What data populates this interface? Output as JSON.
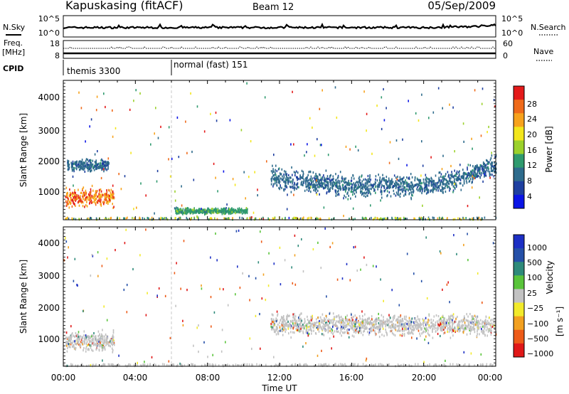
{
  "header": {
    "station": "Kapuskasing (fitACF)",
    "beam": "Beam 12",
    "date": "05/Sep/2009"
  },
  "strip1": {
    "left_label": "N.Sky",
    "right_label": "N.Search",
    "left_ticks": [
      "10^5",
      "10^0"
    ],
    "right_ticks": [
      "10^5",
      "10^0"
    ]
  },
  "strip2": {
    "left_label_1": "Freq.",
    "left_label_2": "[MHz]",
    "right_label": "Nave",
    "left_ticks": [
      "18",
      "8"
    ],
    "right_ticks": [
      "60",
      "0"
    ]
  },
  "cpid": {
    "label": "CPID",
    "segments": [
      {
        "name": "themis 3300",
        "start_hour": 0
      },
      {
        "name": "normal (fast) 151",
        "start_hour": 6
      }
    ]
  },
  "x_axis": {
    "label": "Time UT",
    "tick_labels": [
      "00:00",
      "04:00",
      "08:00",
      "12:00",
      "16:00",
      "20:00",
      "00:00"
    ],
    "range_hours": [
      0,
      24
    ]
  },
  "colors": {
    "power": [
      "#0a14e6",
      "#1e3fa0",
      "#2e6b8c",
      "#2f9a6e",
      "#9bd12b",
      "#f3e61c",
      "#f7a21c",
      "#ef6a1a",
      "#e41a1a"
    ],
    "velocity": [
      "#1c2fc4",
      "#2550a8",
      "#2e8a7a",
      "#59c43a",
      "#c2c2c2",
      "#f2ea2a",
      "#f2a020",
      "#ed5b18",
      "#e01818"
    ]
  },
  "chart_data": [
    {
      "type": "heatmap",
      "title": "",
      "xlabel": "Time UT",
      "ylabel": "Slant Range [km]",
      "xlim": [
        0,
        24
      ],
      "ylim": [
        180,
        4500
      ],
      "y_ticks": [
        "1000",
        "2000",
        "3000",
        "4000"
      ],
      "y_tick_values": [
        1000,
        2000,
        3000,
        4000
      ],
      "colorbar": {
        "label": "Power [dB]",
        "tick_labels": [
          "4",
          "8",
          "12",
          "16",
          "20",
          "24",
          "28"
        ],
        "range": [
          0,
          30
        ]
      },
      "features": [
        {
          "description": "scatter band",
          "t_start": 0.1,
          "t_end": 2.8,
          "range_center": 900,
          "range_width": 400,
          "power": 22
        },
        {
          "description": "scatter band",
          "t_start": 0.2,
          "t_end": 2.5,
          "range_center": 1900,
          "range_width": 250,
          "power": 8
        },
        {
          "description": "ground scatter",
          "t_start": 6.2,
          "t_end": 10.2,
          "range_center": 480,
          "range_width": 120,
          "power": 12
        },
        {
          "description": "main band",
          "t_start": 11.5,
          "t_end": 24,
          "range_center": 1500,
          "range_width": 450,
          "power": 8
        }
      ]
    },
    {
      "type": "heatmap",
      "title": "",
      "xlabel": "Time UT",
      "ylabel": "Slant Range [km]",
      "xlim": [
        0,
        24
      ],
      "ylim": [
        180,
        4500
      ],
      "y_ticks": [
        "1000",
        "2000",
        "3000",
        "4000"
      ],
      "y_tick_values": [
        1000,
        2000,
        3000,
        4000
      ],
      "colorbar": {
        "label": "Velocity",
        "label_unit": "[m s⁻¹]",
        "tick_labels": [
          "1000",
          "500",
          "100",
          "25",
          "−25",
          "−100",
          "−500",
          "−1000"
        ]
      },
      "features": [
        {
          "description": "mostly near-zero velocity scatter",
          "t_start": 0.1,
          "t_end": 2.8,
          "range_center": 1000,
          "range_width": 400,
          "velocity": 0
        },
        {
          "description": "main band near-zero velocity",
          "t_start": 11.5,
          "t_end": 24,
          "range_center": 1500,
          "range_width": 450,
          "velocity": 0
        }
      ]
    }
  ]
}
